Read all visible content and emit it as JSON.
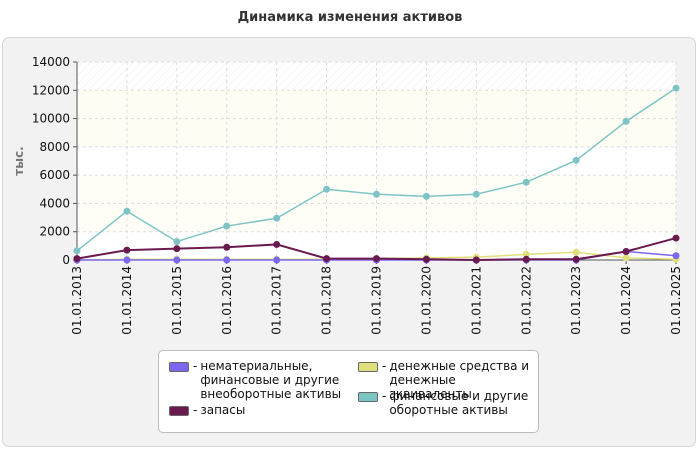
{
  "chart_data": {
    "type": "line",
    "title": "Динамика изменения активов",
    "ylabel": "тыс.",
    "ylim": [
      0,
      14000
    ],
    "yticks": [
      0,
      2000,
      4000,
      6000,
      8000,
      10000,
      12000,
      14000
    ],
    "grid": true,
    "legend_position": "bottom",
    "categories": [
      "01.01.2013",
      "01.01.2014",
      "01.01.2015",
      "01.01.2016",
      "01.01.2017",
      "01.01.2018",
      "01.01.2019",
      "01.01.2020",
      "01.01.2021",
      "01.01.2022",
      "01.01.2023",
      "01.01.2024",
      "01.01.2025"
    ],
    "series": [
      {
        "name": "нематериальные, финансовые и другие внеоборотные активы",
        "color": "#7b68ee",
        "values": [
          0,
          0,
          0,
          0,
          0,
          0,
          0,
          0,
          0,
          0,
          0,
          600,
          300
        ]
      },
      {
        "name": "запасы",
        "color": "#6b1a4f",
        "values": [
          100,
          700,
          800,
          900,
          1100,
          100,
          100,
          50,
          0,
          50,
          50,
          600,
          1550
        ]
      },
      {
        "name": "денежные средства и денежные эквиваленты",
        "color": "#e0e07a",
        "values": [
          0,
          50,
          50,
          50,
          50,
          50,
          100,
          150,
          200,
          400,
          550,
          150,
          50
        ]
      },
      {
        "name": "финансовые и другие оборотные активы",
        "color": "#7fc4c4",
        "values": [
          650,
          3450,
          1300,
          2400,
          2950,
          5000,
          4650,
          4500,
          4650,
          5500,
          7050,
          9800,
          12150
        ]
      }
    ]
  },
  "legend": {
    "items": [
      {
        "label_lines": [
          "нематериальные,",
          "финансовые и другие",
          "внеоборотные активы"
        ],
        "color": "#7b68ee"
      },
      {
        "label_lines": [
          "запасы"
        ],
        "color": "#6b1a4f"
      },
      {
        "label_lines": [
          "денежные средства и",
          "денежные эквиваленты"
        ],
        "color": "#e0e07a"
      },
      {
        "label_lines": [
          "финансовые и другие",
          "оборотные активы"
        ],
        "color": "#7fc4c4"
      }
    ]
  }
}
